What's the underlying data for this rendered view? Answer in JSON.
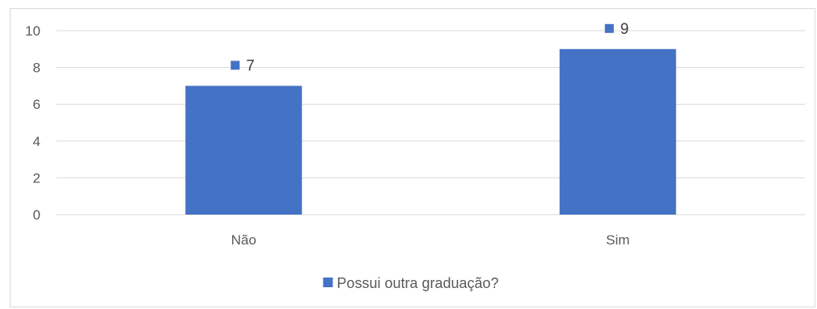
{
  "chart_data": {
    "type": "bar",
    "title": "",
    "xlabel": "",
    "ylabel": "",
    "categories": [
      "Não",
      "Sim"
    ],
    "series": [
      {
        "name": "Possui outra graduação?",
        "values": [
          7,
          9
        ]
      }
    ],
    "ylim": [
      0,
      10
    ],
    "yticks": [
      0,
      2,
      4,
      6,
      8,
      10
    ],
    "grid": true,
    "legend": "bottom",
    "data_labels": true,
    "colors": {
      "bar": "#4472c4",
      "grid": "#d9d9d9",
      "text": "#595959"
    }
  }
}
